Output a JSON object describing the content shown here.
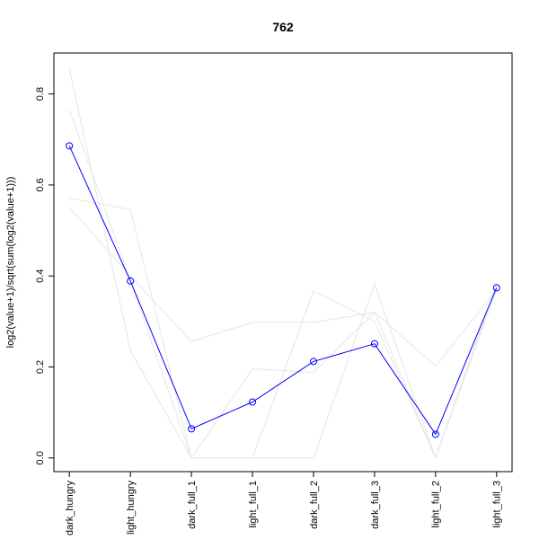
{
  "chart_data": {
    "type": "line",
    "title": "762",
    "xlabel": "",
    "ylabel": "log2(value+1)/sqrt(sum(log2(value+1)))",
    "categories": [
      "dark_hungry",
      "light_hungry",
      "dark_full_1",
      "light_full_1",
      "dark_full_2",
      "dark_full_3",
      "light_full_2",
      "light_full_3"
    ],
    "ylim": [
      -0.03,
      0.89
    ],
    "yticks": [
      0.0,
      0.2,
      0.4,
      0.6,
      0.8
    ],
    "ytick_labels": [
      "0.0",
      "0.2",
      "0.4",
      "0.6",
      "0.8"
    ],
    "grid": false,
    "legend": "none",
    "highlight_color": "#0000ff",
    "background_color": "#e6e6e6",
    "highlight_series": {
      "values": [
        0.686,
        0.389,
        0.064,
        0.123,
        0.212,
        0.251,
        0.052,
        0.374
      ]
    },
    "background_series": [
      {
        "values": [
          0.856,
          0.236,
          0.0,
          0.0,
          0.0,
          0.382,
          0.0,
          0.381
        ]
      },
      {
        "values": [
          0.765,
          0.39,
          0.0,
          0.196,
          0.188,
          0.32,
          0.0,
          0.37
        ]
      },
      {
        "values": [
          0.571,
          0.546,
          0.0,
          0.0,
          0.367,
          0.3,
          0.0,
          0.382
        ]
      },
      {
        "values": [
          0.551,
          0.4,
          0.256,
          0.298,
          0.298,
          0.32,
          0.202,
          0.37
        ]
      }
    ]
  }
}
